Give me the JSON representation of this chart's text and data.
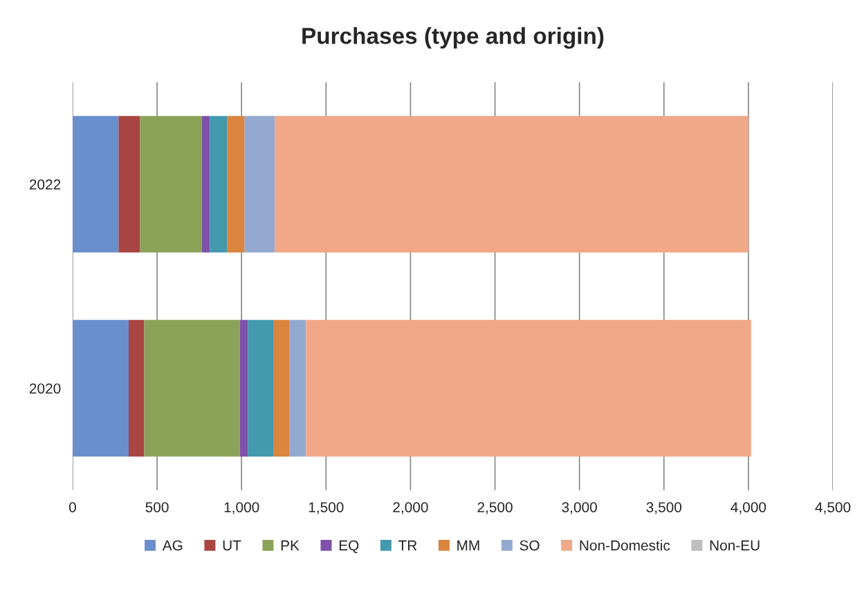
{
  "chart_data": {
    "type": "bar",
    "orientation": "horizontal",
    "stacked": true,
    "title": "Purchases (type and origin)",
    "categories": [
      "2022",
      "2020"
    ],
    "series": [
      {
        "name": "AG",
        "color": "#6a8fcd",
        "values": [
          272,
          332
        ]
      },
      {
        "name": "UT",
        "color": "#a94543",
        "values": [
          128,
          92
        ]
      },
      {
        "name": "PK",
        "color": "#8ba358",
        "values": [
          365,
          566
        ]
      },
      {
        "name": "EQ",
        "color": "#7f51a9",
        "values": [
          47,
          47
        ]
      },
      {
        "name": "TR",
        "color": "#4399ae",
        "values": [
          102,
          154
        ]
      },
      {
        "name": "MM",
        "color": "#db843d",
        "values": [
          104,
          94
        ]
      },
      {
        "name": "SO",
        "color": "#94a9cf",
        "values": [
          179,
          97
        ]
      },
      {
        "name": "Non-Domestic",
        "color": "#f0a889",
        "values": [
          2803,
          2634
        ]
      },
      {
        "name": "Non-EU",
        "color": "#bfbfbf",
        "values": [
          0,
          0
        ]
      }
    ],
    "xlim": [
      0,
      4500
    ],
    "xticks": [
      0,
      {
        "value": 500,
        "label": "500"
      },
      {
        "value": 1000,
        "label": "1,000"
      },
      {
        "value": 1500,
        "label": "1,500"
      },
      {
        "value": 2000,
        "label": "2,000"
      },
      {
        "value": 2500,
        "label": "2,500"
      },
      {
        "value": 3000,
        "label": "3,000"
      },
      {
        "value": 3500,
        "label": "3,500"
      },
      {
        "value": 4000,
        "label": "4,000"
      },
      {
        "value": 4500,
        "label": "4,500"
      }
    ],
    "grid": "x",
    "legend": "bottom"
  }
}
